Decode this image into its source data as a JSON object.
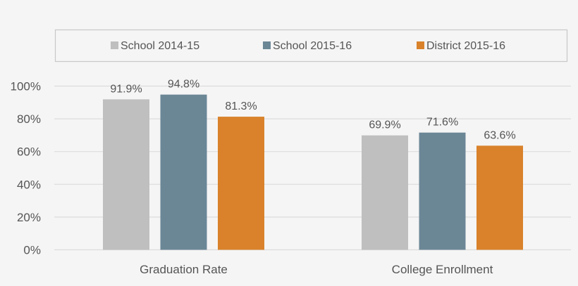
{
  "chart_data": {
    "type": "bar",
    "categories": [
      "Graduation Rate",
      "College Enrollment"
    ],
    "series": [
      {
        "name": "School 2014-15",
        "values": [
          91.9,
          69.9
        ],
        "color": "#bfbfbf"
      },
      {
        "name": "School 2015-16",
        "values": [
          94.8,
          71.6
        ],
        "color": "#6b8796"
      },
      {
        "name": "District 2015-16",
        "values": [
          81.3,
          63.6
        ],
        "color": "#d9822b"
      }
    ],
    "data_labels": [
      [
        "91.9%",
        "69.9%"
      ],
      [
        "94.8%",
        "71.6%"
      ],
      [
        "81.3%",
        "63.6%"
      ]
    ],
    "yticks": [
      "0%",
      "20%",
      "40%",
      "60%",
      "80%",
      "100%"
    ],
    "ytick_values": [
      0,
      20,
      40,
      60,
      80,
      100
    ],
    "ylim": [
      0,
      100
    ],
    "grid": true,
    "legend_placement": "top"
  }
}
